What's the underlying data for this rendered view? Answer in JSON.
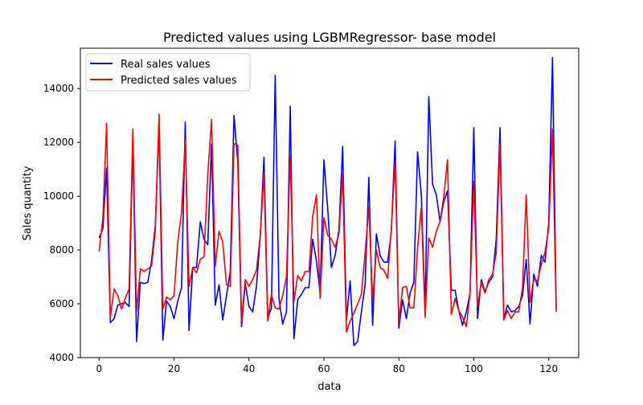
{
  "chart_data": {
    "type": "line",
    "title": "Predicted values using LGBMRegressor- base model",
    "xlabel": "data",
    "ylabel": "Sales quantity",
    "xlim": [
      -5,
      128
    ],
    "ylim": [
      4000,
      15500
    ],
    "xticks": [
      0,
      20,
      40,
      60,
      80,
      100,
      120
    ],
    "yticks": [
      4000,
      6000,
      8000,
      10000,
      12000,
      14000
    ],
    "xtick_labels": [
      "0",
      "20",
      "40",
      "60",
      "80",
      "100",
      "120"
    ],
    "ytick_labels": [
      "4000",
      "6000",
      "8000",
      "10000",
      "12000",
      "14000"
    ],
    "grid": false,
    "legend_position": "top-left",
    "x": [
      0,
      1,
      2,
      3,
      4,
      5,
      6,
      7,
      8,
      9,
      10,
      11,
      12,
      13,
      14,
      15,
      16,
      17,
      18,
      19,
      20,
      21,
      22,
      23,
      24,
      25,
      26,
      27,
      28,
      29,
      30,
      31,
      32,
      33,
      34,
      35,
      36,
      37,
      38,
      39,
      40,
      41,
      42,
      43,
      44,
      45,
      46,
      47,
      48,
      49,
      50,
      51,
      52,
      53,
      54,
      55,
      56,
      57,
      58,
      59,
      60,
      61,
      62,
      63,
      64,
      65,
      66,
      67,
      68,
      69,
      70,
      71,
      72,
      73,
      74,
      75,
      76,
      77,
      78,
      79,
      80,
      81,
      82,
      83,
      84,
      85,
      86,
      87,
      88,
      89,
      90,
      91,
      92,
      93,
      94,
      95,
      96,
      97,
      98,
      99,
      100,
      101,
      102,
      103,
      104,
      105,
      106,
      107,
      108,
      109,
      110,
      111,
      112,
      113,
      114,
      115,
      116,
      117,
      118,
      119,
      120,
      121,
      122
    ],
    "series": [
      {
        "name": "Real sales values",
        "color": "#0000ff",
        "values": [
          8450,
          8800,
          11050,
          5300,
          5450,
          5950,
          6000,
          6050,
          5900,
          12100,
          4600,
          6800,
          6750,
          6800,
          7600,
          8900,
          12700,
          4650,
          6100,
          5900,
          5450,
          6100,
          6600,
          12750,
          5000,
          7350,
          7350,
          9050,
          8400,
          8200,
          11950,
          5950,
          6700,
          5400,
          6300,
          7200,
          13000,
          11300,
          5150,
          6750,
          5900,
          5700,
          6650,
          8500,
          11450,
          5450,
          5850,
          14500,
          6200,
          5250,
          5700,
          13350,
          4700,
          6150,
          6350,
          6600,
          6600,
          8400,
          7600,
          6400,
          11350,
          9550,
          7350,
          7800,
          8750,
          11850,
          5400,
          6850,
          4450,
          4600,
          5700,
          6700,
          10700,
          5200,
          8600,
          7800,
          7550,
          7550,
          8700,
          12050,
          5100,
          6150,
          5450,
          6400,
          6800,
          11650,
          10050,
          5700,
          13700,
          10450,
          10050,
          9050,
          9800,
          10200,
          6500,
          6500,
          5750,
          5200,
          5700,
          6400,
          12550,
          5450,
          6900,
          6450,
          6800,
          7000,
          8400,
          12550,
          5450,
          5950,
          5700,
          5750,
          5900,
          6300,
          7650,
          5250,
          7100,
          6650,
          7800,
          7550,
          9000,
          15150,
          5800
        ]
      },
      {
        "name": "Predicted sales values",
        "color": "#ff0000",
        "values": [
          7950,
          9200,
          12700,
          5500,
          6550,
          6300,
          5800,
          6200,
          6550,
          12500,
          5700,
          7300,
          7200,
          7300,
          7400,
          8700,
          13050,
          5800,
          6250,
          6150,
          6300,
          8300,
          9400,
          12100,
          6650,
          7350,
          7150,
          7650,
          7750,
          10800,
          12850,
          7400,
          8700,
          8300,
          6700,
          6650,
          11950,
          11900,
          5350,
          6900,
          6650,
          6900,
          7250,
          8550,
          10850,
          5350,
          6350,
          5850,
          5800,
          6300,
          7000,
          11500,
          6100,
          7050,
          6850,
          7200,
          7200,
          9250,
          10050,
          6200,
          9200,
          8550,
          8400,
          8100,
          8600,
          10850,
          4950,
          5350,
          5650,
          6000,
          6350,
          7900,
          9600,
          6100,
          8000,
          7350,
          7250,
          6950,
          8800,
          11300,
          5300,
          6600,
          6650,
          5850,
          5850,
          8050,
          9600,
          5500,
          8450,
          8100,
          8700,
          9050,
          10000,
          11350,
          5600,
          6200,
          5750,
          5500,
          5150,
          6400,
          10550,
          5900,
          6800,
          6400,
          6900,
          7100,
          7900,
          11950,
          5400,
          5750,
          5450,
          5700,
          5700,
          6600,
          10050,
          6050,
          6900,
          6850,
          7450,
          7900,
          8800,
          12500,
          5700
        ]
      }
    ]
  }
}
